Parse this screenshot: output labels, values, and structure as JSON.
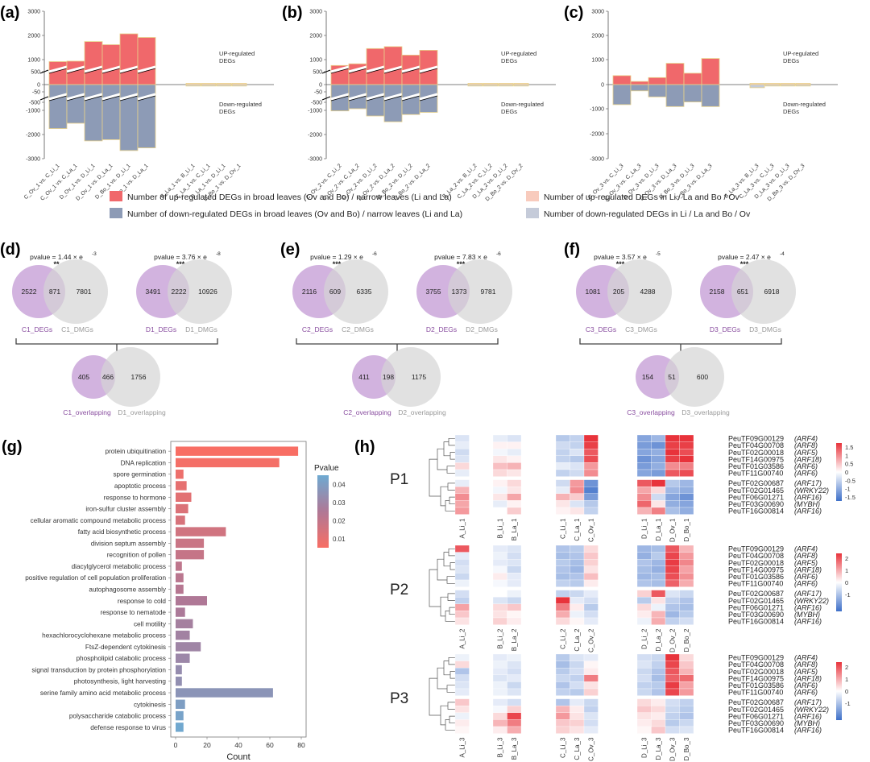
{
  "panel_labels": [
    "(a)",
    "(b)",
    "(c)",
    "(d)",
    "(e)",
    "(f)",
    "(g)",
    "(h)"
  ],
  "colors": {
    "up_main": "#f0686b",
    "down_main": "#8d9bb6",
    "up_light": "#f8cbbd",
    "down_light": "#c5cbd9",
    "bar_edge": "#e8d18a",
    "deg_circle": "#c39ad4",
    "dmg_circle": "#d4d4d4",
    "deg_label": "#8a4fa0",
    "dmg_label": "#999999",
    "heat_hi": "#e8333b",
    "heat_mid": "#ffffff",
    "heat_lo": "#3d6fc8"
  },
  "legend": {
    "up_main": "Number of up-regulated DEGs  in broad leaves (Ov and Bo) / narrow leaves (Li and La)",
    "down_main": "Number of down-regulated DEGs in broad leaves (Ov and Bo) / narrow leaves (Li and La)",
    "up_light": "Number of up-regulated DEGs in Li / La and Bo / Ov",
    "down_light": "Number of down-regulated DEGs in Li / La and Bo / Ov"
  },
  "chart_data": [
    {
      "type": "bar",
      "panel": "(a)",
      "title": "",
      "xlabel": "",
      "ylabel": "",
      "ylim": [
        -3000,
        3000
      ],
      "yticks": [
        "3000",
        "2000",
        "1000",
        "500",
        "0",
        "-50",
        "-500",
        "-1000",
        "-2000",
        "-3000"
      ],
      "categories": [
        "C_Ov_1 vs. C_Li_1",
        "C_Ov_1 vs. C_La_1",
        "D_Ov_1 vs. D_Li_1",
        "D_Ov_1 vs. D_La_1",
        "D_Bo_1 vs. D_Li_1",
        "D_Bo_1 vs. D_La_1",
        "B_La_1 vs. B_Li_1",
        "C_La_1 vs. C_Li_1",
        "D_La_1 vs. D_Li_1",
        "D_Bo_1 vs. D_Ov_1"
      ],
      "series": [
        {
          "name": "up",
          "values": [
            950,
            970,
            1780,
            1650,
            2100,
            1950,
            10,
            30,
            15,
            10
          ]
        },
        {
          "name": "down",
          "values": [
            -1820,
            -1600,
            -2330,
            -2280,
            -2730,
            -2620,
            -20,
            -50,
            -10,
            -10
          ]
        }
      ],
      "annotations": [
        "UP-regulated\nDEGs",
        "Down-regulated\nDEGs"
      ]
    },
    {
      "type": "bar",
      "panel": "(b)",
      "title": "",
      "xlabel": "",
      "ylabel": "",
      "ylim": [
        -3000,
        3000
      ],
      "yticks": [
        "3000",
        "2000",
        "1000",
        "500",
        "0",
        "-50",
        "-500",
        "-1000",
        "-2000",
        "-3000"
      ],
      "categories": [
        "C_Ov_2 vs. C_Li_2",
        "C_Ov_2 vs. C_La_2",
        "D_Ov_2 vs. D_Li_2",
        "D_Ov_2 vs. D_La_2",
        "D_Bo_2 vs. D_Li_2",
        "D_Bo_2 vs. D_La_2",
        "B_La_2 vs. B_Li_2",
        "C_La_2 vs. C_Li_2",
        "D_La_2 vs. D_Li_2",
        "D_Bo_2 vs. D_Ov_2"
      ],
      "series": [
        {
          "name": "up",
          "values": [
            790,
            860,
            1490,
            1570,
            1220,
            1420,
            20,
            50,
            10,
            10
          ]
        },
        {
          "name": "down",
          "values": [
            -1090,
            -1000,
            -1300,
            -1540,
            -1240,
            -1150,
            -20,
            -60,
            -10,
            -10
          ]
        }
      ],
      "annotations": [
        "UP-regulated\nDEGs",
        "Down-regulated\nDEGs"
      ]
    },
    {
      "type": "bar",
      "panel": "(c)",
      "title": "",
      "xlabel": "",
      "ylabel": "",
      "ylim": [
        -3000,
        3000
      ],
      "yticks": [
        "3000",
        "2000",
        "1000",
        "0",
        "-1000",
        "-2000",
        "-3000"
      ],
      "categories": [
        "C_Ov_3 vs. C_Li_3",
        "C_Ov_3 vs. C_La_3",
        "D_Ov_3 vs. D_Li_3",
        "D_Ov_3 vs. D_La_3",
        "D_Bo_3 vs. D_Li_3",
        "D_Bo_3 vs. D_La_3",
        "B_La_3 vs. B_Li_3",
        "C_La_3 vs. C_Li_3",
        "D_La_3 vs. D_Li_3",
        "D_Bo_3 vs. D_Ov_3"
      ],
      "series": [
        {
          "name": "up",
          "values": [
            370,
            130,
            290,
            880,
            470,
            1080,
            10,
            20,
            10,
            15
          ]
        },
        {
          "name": "down",
          "values": [
            -830,
            -260,
            -510,
            -910,
            -720,
            -910,
            -130,
            -60,
            -40,
            -30
          ]
        }
      ],
      "annotations": [
        "UP-regulated\nDEGs",
        "Down-regulated\nDEGs"
      ]
    },
    {
      "type": "venn",
      "panel": "(d)",
      "pairs": [
        {
          "pvalue": "pvalue = 1.44 × e",
          "exp": "-3",
          "sig": "**",
          "left": "2522",
          "mid": "871",
          "right": "7801",
          "left_label": "C1_DEGs",
          "right_label": "C1_DMGs"
        },
        {
          "pvalue": "pvalue = 3.76 × e",
          "exp": "-8",
          "sig": "***",
          "left": "3491",
          "mid": "2222",
          "right": "10926",
          "left_label": "D1_DEGs",
          "right_label": "D1_DMGs"
        }
      ],
      "overlap": {
        "left": "405",
        "mid": "466",
        "right": "1756",
        "left_label": "C1_overlapping",
        "right_label": "D1_overlapping"
      }
    },
    {
      "type": "venn",
      "panel": "(e)",
      "pairs": [
        {
          "pvalue": "pvalue = 1.29 × e",
          "exp": "-6",
          "sig": "***",
          "left": "2116",
          "mid": "609",
          "right": "6335",
          "left_label": "C2_DEGs",
          "right_label": "C2_DMGs"
        },
        {
          "pvalue": "pvalue = 7.83 × e",
          "exp": "-6",
          "sig": "***",
          "left": "3755",
          "mid": "1373",
          "right": "9781",
          "left_label": "D2_DEGs",
          "right_label": "D2_DMGs"
        }
      ],
      "overlap": {
        "left": "411",
        "mid": "198",
        "right": "1175",
        "left_label": "C2_overlapping",
        "right_label": "D2_overlapping"
      }
    },
    {
      "type": "venn",
      "panel": "(f)",
      "pairs": [
        {
          "pvalue": "pvalue = 3.57 × e",
          "exp": "-5",
          "sig": "***",
          "left": "1081",
          "mid": "205",
          "right": "4288",
          "left_label": "C3_DEGs",
          "right_label": "C3_DMGs"
        },
        {
          "pvalue": "pvalue = 2.47 × e",
          "exp": "-4",
          "sig": "***",
          "left": "2158",
          "mid": "651",
          "right": "6918",
          "left_label": "D3_DEGs",
          "right_label": "D3_DMGs"
        }
      ],
      "overlap": {
        "left": "154",
        "mid": "51",
        "right": "600",
        "left_label": "C3_overlapping",
        "right_label": "D3_overlapping"
      }
    },
    {
      "type": "bar",
      "panel": "(g)",
      "orientation": "horizontal",
      "title": "",
      "xlabel": "Count",
      "ylabel": "",
      "xlim": [
        0,
        80
      ],
      "xticks": [
        "0",
        "20",
        "40",
        "60",
        "80"
      ],
      "colorbar": {
        "title": "Pvalue",
        "ticks": [
          "0.04",
          "0.03",
          "0.02",
          "0.01"
        ],
        "range": [
          0.005,
          0.045
        ]
      },
      "categories": [
        "protein ubiquitination",
        "DNA replication",
        "spore germination",
        "apoptotic process",
        "response to hormone",
        "iron-sulfur cluster assembly",
        "cellular aromatic compound metabolic process",
        "fatty acid biosynthetic process",
        "division septum assembly",
        "recognition of pollen",
        "diacylglycerol metabolic process",
        "positive regulation of cell population proliferation",
        "autophagosome assembly",
        "response to cold",
        "response to nematode",
        "cell motility",
        "hexachlorocyclohexane metabolic process",
        "FtsZ-dependent cytokinesis",
        "phospholipid catabolic process",
        "signal transduction by protein phosphorylation",
        "photosynthesis, light harvesting",
        "serine family amino acid metabolic process",
        "cytokinesis",
        "polysaccharide catabolic process",
        "defense response to virus"
      ],
      "values": [
        78,
        66,
        5,
        7,
        10,
        8,
        6,
        32,
        18,
        18,
        4,
        5,
        5,
        20,
        6,
        11,
        9,
        16,
        9,
        4,
        4,
        62,
        6,
        5,
        5
      ],
      "pvalues": [
        0.005,
        0.006,
        0.008,
        0.01,
        0.011,
        0.013,
        0.014,
        0.016,
        0.018,
        0.019,
        0.021,
        0.022,
        0.023,
        0.025,
        0.026,
        0.028,
        0.029,
        0.03,
        0.031,
        0.033,
        0.034,
        0.036,
        0.04,
        0.042,
        0.044
      ]
    },
    {
      "type": "heatmap",
      "panel": "(h)",
      "row_labels": [
        "PeuTF09G00129",
        "PeuTF04G00708",
        "PeuTF02G00018",
        "PeuTF14G00975",
        "PeuTF01G03586",
        "PeuTF11G00740",
        "PeuTF02G00687",
        "PeuTF02G01465",
        "PeuTF06G01271",
        "PeuTF03G00690",
        "PeuTF16G00814"
      ],
      "row_genes": [
        "(ARF4)",
        "(ARF8)",
        "(ARF5)",
        "(ARF18)",
        "(ARF6)",
        "(ARF6)",
        "(ARF17)",
        "(WRKY22)",
        "(ARF16)",
        "(MYBH)",
        "(ARF16)"
      ],
      "blocks": [
        {
          "name": "P1",
          "col_labels": [
            "A_Li_1",
            "B_Li_1",
            "B_La_1",
            "C_Li_1",
            "C_La_1",
            "C_Ov_1",
            "D_Li_1",
            "D_La_1",
            "D_Ov_1",
            "D_Bo_1"
          ],
          "colorbar_ticks": [
            "1.5",
            "1",
            "0.5",
            "0",
            "-0.5",
            "-1",
            "-1.5"
          ],
          "values": [
            [
              -0.3,
              -0.2,
              -0.3,
              -0.6,
              -0.5,
              1.6,
              -1.0,
              -0.8,
              1.6,
              1.6
            ],
            [
              -0.2,
              0.1,
              0.1,
              -0.4,
              -0.5,
              1.5,
              -1.1,
              -1.2,
              1.5,
              1.5
            ],
            [
              -0.4,
              -0.1,
              -0.2,
              -0.5,
              -0.3,
              1.3,
              -1.0,
              -0.9,
              1.6,
              1.4
            ],
            [
              -0.3,
              0.2,
              0.1,
              -0.5,
              -0.6,
              1.4,
              -1.2,
              -1.0,
              1.5,
              1.6
            ],
            [
              0.3,
              0.5,
              0.6,
              -0.2,
              -0.3,
              0.8,
              -1.1,
              -0.9,
              0.9,
              1.0
            ],
            [
              -0.2,
              0.3,
              0.2,
              -0.5,
              -0.4,
              0.9,
              -1.0,
              -1.1,
              1.3,
              1.4
            ],
            [
              -0.2,
              0.1,
              0.3,
              -0.4,
              0.8,
              -1.2,
              1.3,
              1.6,
              -0.6,
              -0.8
            ],
            [
              0.6,
              -0.1,
              0.2,
              -0.2,
              0.9,
              -1.4,
              0.7,
              0.3,
              -0.8,
              -0.9
            ],
            [
              0.9,
              0.2,
              0.7,
              0.6,
              0.4,
              -1.1,
              0.9,
              -0.4,
              -1.0,
              -1.2
            ],
            [
              0.7,
              -0.2,
              0.1,
              0.2,
              -0.3,
              -0.6,
              1.2,
              0.2,
              -0.9,
              -1.0
            ],
            [
              0.8,
              0.0,
              0.4,
              0.1,
              0.2,
              -0.5,
              0.6,
              1.0,
              -0.7,
              -0.9
            ]
          ]
        },
        {
          "name": "P2",
          "col_labels": [
            "A_Li_2",
            "B_Li_2",
            "B_La_2",
            "C_Li_2",
            "C_La_2",
            "C_Ov_2",
            "D_Li_2",
            "D_La_2",
            "D_Ov_2",
            "D_Bo_2"
          ],
          "colorbar_ticks": [
            "2",
            "1",
            "0",
            "-1"
          ],
          "values": [
            [
              1.8,
              -0.3,
              -0.4,
              -0.9,
              -0.8,
              0.4,
              -1.1,
              -1.0,
              1.8,
              0.8
            ],
            [
              -0.3,
              -0.2,
              -0.5,
              -1.0,
              -0.9,
              0.6,
              -1.2,
              -0.8,
              2.0,
              1.1
            ],
            [
              -0.5,
              -0.3,
              -0.4,
              -0.8,
              -1.0,
              0.5,
              -0.9,
              -1.1,
              2.1,
              1.3
            ],
            [
              -0.4,
              -0.1,
              -0.6,
              -0.9,
              -1.1,
              0.3,
              -1.0,
              -1.2,
              2.0,
              1.0
            ],
            [
              -0.6,
              0.2,
              -0.3,
              -1.0,
              -0.9,
              0.7,
              -1.1,
              -1.0,
              1.9,
              1.2
            ],
            [
              -0.2,
              -0.1,
              -0.3,
              -0.7,
              -0.8,
              0.2,
              -0.9,
              -1.0,
              1.7,
              0.9
            ],
            [
              -0.5,
              0.0,
              -0.2,
              -0.7,
              -0.6,
              -0.3,
              0.5,
              1.8,
              -0.4,
              -0.6
            ],
            [
              -0.7,
              -0.4,
              -0.6,
              2.2,
              -0.3,
              -0.5,
              -0.8,
              0.3,
              -0.7,
              -0.9
            ],
            [
              1.0,
              0.4,
              0.6,
              1.4,
              0.2,
              -0.8,
              0.4,
              -0.2,
              -0.9,
              -1.0
            ],
            [
              0.6,
              0.3,
              0.1,
              0.9,
              -0.2,
              -0.5,
              0.2,
              0.8,
              -1.1,
              -0.8
            ],
            [
              0.3,
              0.5,
              0.2,
              0.4,
              0.1,
              -0.3,
              -0.2,
              0.9,
              -0.7,
              -0.5
            ]
          ]
        },
        {
          "name": "P3",
          "col_labels": [
            "A_Li_3",
            "B_Li_3",
            "B_La_3",
            "C_Li_3",
            "C_La_3",
            "C_Ov_3",
            "D_Li_3",
            "D_La_3",
            "D_Ov_3",
            "D_Bo_3"
          ],
          "colorbar_ticks": [
            "2",
            "1",
            "0",
            "-1"
          ],
          "values": [
            [
              -0.2,
              -0.3,
              -0.2,
              -0.8,
              -0.4,
              -0.3,
              -0.5,
              -0.6,
              2.2,
              0.4
            ],
            [
              0.4,
              -0.2,
              -0.4,
              -1.0,
              -0.6,
              0.1,
              -0.4,
              -0.7,
              2.0,
              0.6
            ],
            [
              -0.9,
              -0.3,
              -0.5,
              -0.8,
              -0.5,
              0.2,
              -0.6,
              -0.9,
              1.8,
              0.8
            ],
            [
              -0.5,
              -0.4,
              -0.3,
              -0.6,
              -0.7,
              1.4,
              -0.5,
              -1.0,
              1.7,
              1.6
            ],
            [
              -0.4,
              -0.2,
              -0.6,
              -0.9,
              -0.5,
              0.3,
              -0.7,
              -0.8,
              2.1,
              1.0
            ],
            [
              -0.3,
              -0.2,
              -0.4,
              -0.7,
              -0.8,
              0.5,
              -0.6,
              -0.9,
              2.0,
              1.1
            ],
            [
              0.6,
              -0.3,
              -0.5,
              -0.9,
              -0.3,
              -0.6,
              0.4,
              0.2,
              -0.5,
              -0.7
            ],
            [
              0.3,
              -0.1,
              0.5,
              0.8,
              0.2,
              -0.7,
              0.6,
              0.4,
              -0.6,
              -0.8
            ],
            [
              -0.2,
              0.4,
              2.0,
              1.1,
              0.3,
              -0.4,
              0.3,
              0.2,
              -0.7,
              -0.9
            ],
            [
              0.2,
              0.8,
              1.4,
              0.6,
              0.5,
              -0.5,
              0.2,
              0.4,
              -0.8,
              -0.6
            ],
            [
              0.1,
              0.2,
              0.9,
              0.5,
              0.3,
              -0.3,
              0.1,
              0.6,
              -0.5,
              -0.4
            ]
          ]
        }
      ]
    }
  ]
}
